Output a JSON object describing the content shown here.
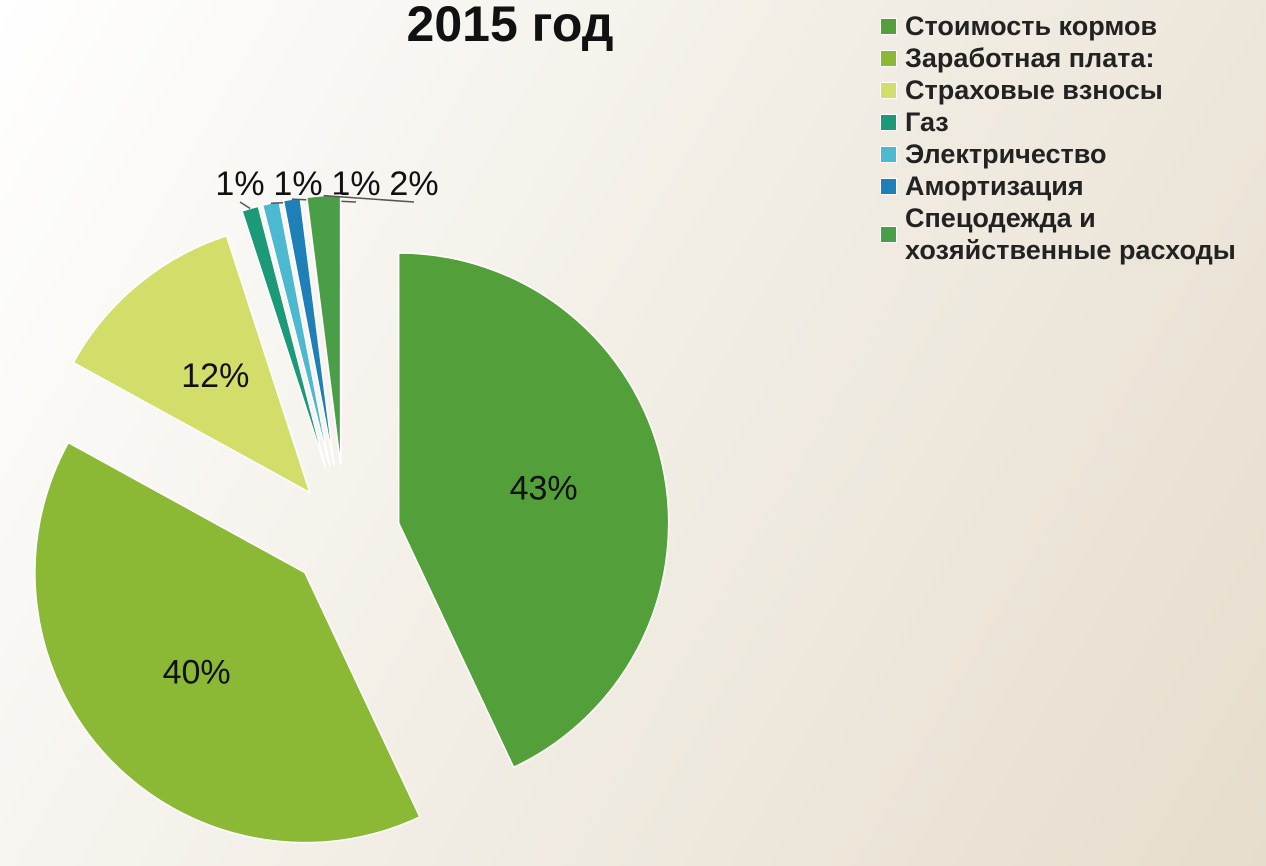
{
  "chart_data": {
    "type": "pie",
    "title": "2015 год",
    "categories": [
      "Стоимость кормов",
      "Заработная плата:",
      "Страховые взносы",
      "Газ",
      "Электричество",
      "Амортизация",
      "Спецодежда и хозяйственные расходы"
    ],
    "values": [
      43,
      40,
      12,
      1,
      1,
      1,
      2
    ],
    "value_labels": [
      "43%",
      "40%",
      "12%",
      "1%",
      "1%",
      "1%",
      "2%"
    ],
    "colors": [
      "#53a03a",
      "#8cb935",
      "#d3dd6a",
      "#1c9a78",
      "#4db9d0",
      "#1f80b8",
      "#4b9e48"
    ],
    "legend": "right"
  }
}
